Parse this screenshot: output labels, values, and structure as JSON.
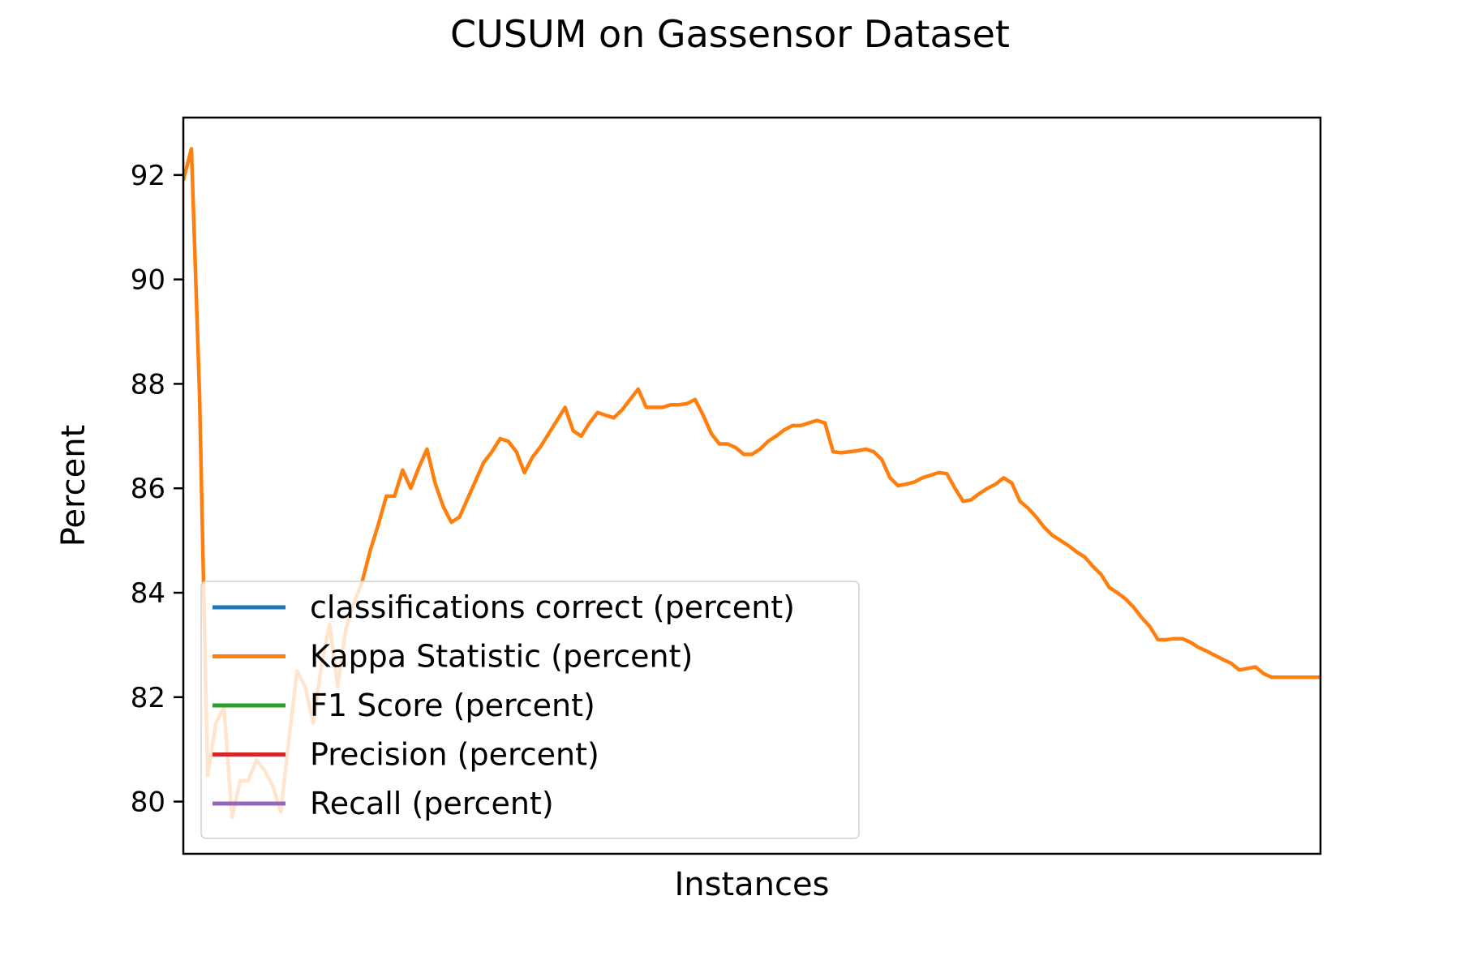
{
  "chart_data": {
    "type": "line",
    "title": "CUSUM on Gassensor Dataset",
    "xlabel": "Instances",
    "ylabel": "Percent",
    "ylim": [
      79.0,
      93.1
    ],
    "xlim": [
      0,
      140
    ],
    "yticks": [
      80,
      82,
      84,
      86,
      88,
      90,
      92
    ],
    "xticks": [],
    "grid": false,
    "legend_placement": "lower-left",
    "series": [
      {
        "name": "classifications correct (percent)",
        "color": "#1f77b4",
        "x": [],
        "values": []
      },
      {
        "name": "Kappa Statistic (percent)",
        "color": "#ff7f0e",
        "x": [
          0,
          1,
          2,
          3,
          4,
          5,
          6,
          7,
          8,
          9,
          10,
          11,
          12,
          13,
          14,
          15,
          16,
          17,
          18,
          19,
          20,
          21,
          22,
          23,
          24,
          25,
          26,
          27,
          28,
          29,
          30,
          31,
          32,
          33,
          34,
          35,
          36,
          37,
          38,
          39,
          40,
          41,
          42,
          43,
          44,
          45,
          46,
          47,
          48,
          49,
          50,
          51,
          52,
          53,
          54,
          55,
          56,
          57,
          58,
          59,
          60,
          61,
          62,
          63,
          64,
          65,
          66,
          67,
          68,
          69,
          70,
          71,
          72,
          73,
          74,
          75,
          76,
          77,
          78,
          79,
          80,
          81,
          82,
          83,
          84,
          85,
          86,
          87,
          88,
          89,
          90,
          91,
          92,
          93,
          94,
          95,
          96,
          97,
          98,
          99,
          100,
          101,
          102,
          103,
          104,
          105,
          106,
          107,
          108,
          109,
          110,
          111,
          112,
          113,
          114,
          115,
          116,
          117,
          118,
          119,
          120,
          121,
          122,
          123,
          124,
          125,
          126,
          127,
          128,
          129,
          130,
          131,
          132,
          133,
          134,
          135,
          136,
          137,
          138,
          139,
          140
        ],
        "values": [
          91.9,
          92.5,
          87.8,
          80.5,
          81.5,
          81.8,
          79.7,
          80.4,
          80.4,
          80.8,
          80.6,
          80.3,
          79.8,
          81.2,
          82.5,
          82.2,
          81.5,
          82.6,
          83.4,
          82.2,
          83.3,
          83.8,
          84.2,
          84.8,
          85.3,
          85.85,
          85.85,
          86.35,
          86.0,
          86.4,
          86.75,
          86.1,
          85.65,
          85.35,
          85.45,
          85.8,
          86.15,
          86.5,
          86.7,
          86.95,
          86.9,
          86.7,
          86.3,
          86.6,
          86.8,
          87.05,
          87.3,
          87.55,
          87.1,
          87.0,
          87.25,
          87.45,
          87.4,
          87.35,
          87.5,
          87.7,
          87.9,
          87.55,
          87.55,
          87.55,
          87.6,
          87.6,
          87.62,
          87.7,
          87.4,
          87.05,
          86.85,
          86.85,
          86.78,
          86.65,
          86.65,
          86.75,
          86.9,
          87.0,
          87.12,
          87.2,
          87.2,
          87.25,
          87.3,
          87.25,
          86.7,
          86.68,
          86.7,
          86.72,
          86.75,
          86.7,
          86.55,
          86.2,
          86.05,
          86.08,
          86.12,
          86.2,
          86.25,
          86.3,
          86.28,
          86.0,
          85.75,
          85.78,
          85.9,
          86.0,
          86.08,
          86.2,
          86.1,
          85.75,
          85.62,
          85.45,
          85.25,
          85.1,
          85.0,
          84.9,
          84.78,
          84.68,
          84.5,
          84.35,
          84.1,
          84.0,
          83.88,
          83.72,
          83.52,
          83.35,
          83.1,
          83.1,
          83.12,
          83.12,
          83.05,
          82.95,
          82.88,
          82.8,
          82.72,
          82.65,
          82.52,
          82.55,
          82.58,
          82.45,
          82.38,
          82.38,
          82.38,
          82.38,
          82.38,
          82.38,
          82.38
        ]
      },
      {
        "name": "F1 Score (percent)",
        "color": "#2ca02c",
        "x": [],
        "values": []
      },
      {
        "name": "Precision (percent)",
        "color": "#d62728",
        "x": [],
        "values": []
      },
      {
        "name": "Recall (percent)",
        "color": "#9467bd",
        "x": [],
        "values": []
      }
    ]
  }
}
